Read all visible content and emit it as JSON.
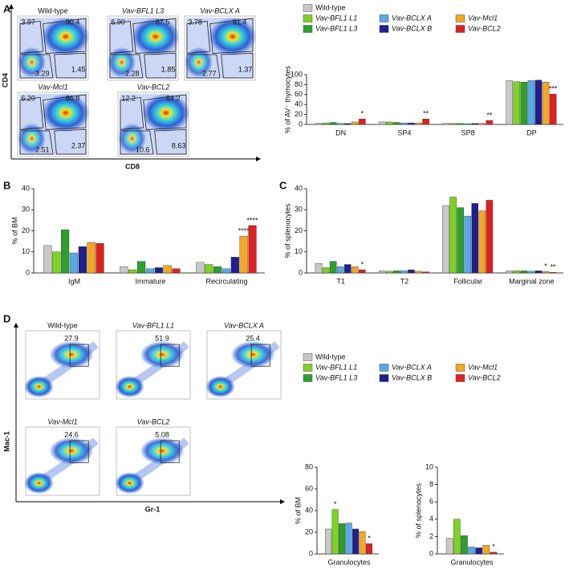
{
  "panel_labels": [
    "A",
    "B",
    "C",
    "D"
  ],
  "flow_panels": [
    {
      "x_label": "CD8",
      "y_label": "CD4",
      "plots": [
        {
          "title": "Wild-type",
          "gates": [
            "3.97",
            "90.4",
            "3.29",
            "1.45"
          ]
        },
        {
          "title": "Vav-BFL1 L3",
          "gates": [
            "6.90",
            "87.5",
            "2.28",
            "1.85"
          ]
        },
        {
          "title": "Vav-BCLX A",
          "gates": [
            "3.78",
            "91.4",
            "2.77",
            "1.37"
          ]
        },
        {
          "title": "Vav-Mcl1",
          "gates": [
            "6.20",
            "86.8",
            "2.51",
            "2.37"
          ]
        },
        {
          "title": "Vav-BCL2",
          "gates": [
            "12.2",
            "64.2",
            "10.6",
            "8.63"
          ]
        }
      ]
    },
    {
      "x_label": "Gr-1",
      "y_label": "Mac-1",
      "plots": [
        {
          "title": "Wild-type",
          "gates": [
            "27.9"
          ]
        },
        {
          "title": "Vav-BFL1 L1",
          "gates": [
            "51.9"
          ]
        },
        {
          "title": "Vav-BCLX A",
          "gates": [
            "25.4"
          ]
        },
        {
          "title": "Vav-Mcl1",
          "gates": [
            "24.6"
          ]
        },
        {
          "title": "Vav-BCL2",
          "gates": [
            "5.08"
          ]
        }
      ]
    }
  ],
  "chart_data": [
    {
      "type": "bar",
      "y_label": "% of AV⁻ thymocytes",
      "categories": [
        "DN",
        "SP4",
        "SP8",
        "DP"
      ],
      "ylim": [
        0,
        100
      ],
      "yticks": [
        0,
        20,
        40,
        60,
        80,
        100
      ],
      "series": [
        {
          "name": "Wild-type",
          "color": "#c8c8c8",
          "values": [
            2.5,
            5,
            2,
            88
          ]
        },
        {
          "name": "Vav-BFL1 L1",
          "color": "#7ed321",
          "values": [
            3,
            5,
            2,
            86
          ]
        },
        {
          "name": "Vav-BFL1 L3",
          "color": "#2ca02c",
          "values": [
            4,
            4,
            2,
            85
          ]
        },
        {
          "name": "Vav-BCLX A",
          "color": "#5aa9e6",
          "values": [
            2,
            3,
            1.5,
            88
          ]
        },
        {
          "name": "Vav-BCLX B",
          "color": "#1f1f8f",
          "values": [
            2,
            3,
            2,
            89
          ]
        },
        {
          "name": "Vav-Mcl1",
          "color": "#f5a623",
          "values": [
            5,
            3,
            2,
            85
          ]
        },
        {
          "name": "Vav-BCL2",
          "color": "#e02020",
          "values": [
            11,
            11,
            8,
            61
          ],
          "significance": [
            "*",
            "**",
            "**",
            "***"
          ]
        }
      ]
    },
    {
      "type": "bar",
      "y_label": "% of BM",
      "categories": [
        "IgM",
        "Immature",
        "Recirculating"
      ],
      "ylim": [
        0,
        40
      ],
      "yticks": [
        0,
        10,
        20,
        30,
        40
      ],
      "series": [
        {
          "color": "#c8c8c8",
          "values": [
            13,
            3,
            5
          ]
        },
        {
          "color": "#7ed321",
          "values": [
            10,
            1.5,
            4
          ]
        },
        {
          "color": "#2ca02c",
          "values": [
            20.5,
            5.5,
            3
          ]
        },
        {
          "color": "#5aa9e6",
          "values": [
            9.5,
            2,
            2
          ]
        },
        {
          "color": "#1f1f8f",
          "values": [
            12.5,
            2.5,
            7.5
          ]
        },
        {
          "color": "#f5a623",
          "values": [
            14.5,
            3.5,
            17.5
          ],
          "significance": [
            null,
            null,
            "****"
          ]
        },
        {
          "color": "#e02020",
          "values": [
            14,
            2,
            22.5
          ],
          "significance": [
            null,
            null,
            "****"
          ]
        }
      ]
    },
    {
      "type": "bar",
      "y_label": "% of splenocytes",
      "categories": [
        "T1",
        "T2",
        "Follicular",
        "Marginal zone"
      ],
      "ylim": [
        0,
        40
      ],
      "yticks": [
        0,
        10,
        20,
        30,
        40
      ],
      "series": [
        {
          "color": "#c8c8c8",
          "values": [
            4.5,
            1,
            32,
            1
          ]
        },
        {
          "color": "#7ed321",
          "values": [
            2.5,
            0.8,
            36,
            1
          ]
        },
        {
          "color": "#2ca02c",
          "values": [
            5.5,
            1,
            31,
            1
          ]
        },
        {
          "color": "#5aa9e6",
          "values": [
            3,
            1,
            27,
            0.8
          ]
        },
        {
          "color": "#1f1f8f",
          "values": [
            4,
            1.5,
            33,
            1
          ]
        },
        {
          "color": "#f5a623",
          "values": [
            3,
            0.8,
            29.5,
            0.7
          ],
          "significance": [
            null,
            null,
            null,
            "*"
          ]
        },
        {
          "color": "#e02020",
          "values": [
            1.5,
            0.5,
            34.5,
            0.3
          ],
          "significance": [
            "*",
            null,
            null,
            "**"
          ]
        }
      ]
    },
    {
      "type": "bar",
      "y_label": "% of BM",
      "categories": [
        "Granulocytes"
      ],
      "ylim": [
        0,
        80
      ],
      "yticks": [
        0,
        20,
        40,
        60,
        80
      ],
      "series": [
        {
          "name": "Wild-type",
          "color": "#c8c8c8",
          "values": [
            23
          ]
        },
        {
          "name": "Vav-BFL1 L1",
          "color": "#7ed321",
          "values": [
            41
          ],
          "significance": [
            "*"
          ]
        },
        {
          "name": "Vav-BFL1 L3",
          "color": "#2ca02c",
          "values": [
            28
          ]
        },
        {
          "name": "Vav-BCLX A",
          "color": "#5aa9e6",
          "values": [
            28.5
          ]
        },
        {
          "name": "Vav-BCLX B",
          "color": "#1f1f8f",
          "values": [
            23
          ]
        },
        {
          "name": "Vav-Mcl1",
          "color": "#f5a623",
          "values": [
            20.5
          ]
        },
        {
          "name": "Vav-BCL2",
          "color": "#e02020",
          "values": [
            9.5
          ],
          "significance": [
            "*"
          ]
        }
      ]
    },
    {
      "type": "bar",
      "y_label": "% of splenocytes",
      "categories": [
        "Granulocytes"
      ],
      "ylim": [
        0,
        10
      ],
      "yticks": [
        0,
        2,
        4,
        6,
        8,
        10
      ],
      "series": [
        {
          "color": "#c8c8c8",
          "values": [
            1.8
          ]
        },
        {
          "color": "#7ed321",
          "values": [
            4
          ]
        },
        {
          "color": "#2ca02c",
          "values": [
            2.1
          ]
        },
        {
          "color": "#5aa9e6",
          "values": [
            0.8
          ]
        },
        {
          "color": "#1f1f8f",
          "values": [
            0.7
          ]
        },
        {
          "color": "#f5a623",
          "values": [
            1
          ]
        },
        {
          "color": "#e02020",
          "values": [
            0.2
          ],
          "significance": [
            "*"
          ]
        }
      ]
    }
  ]
}
